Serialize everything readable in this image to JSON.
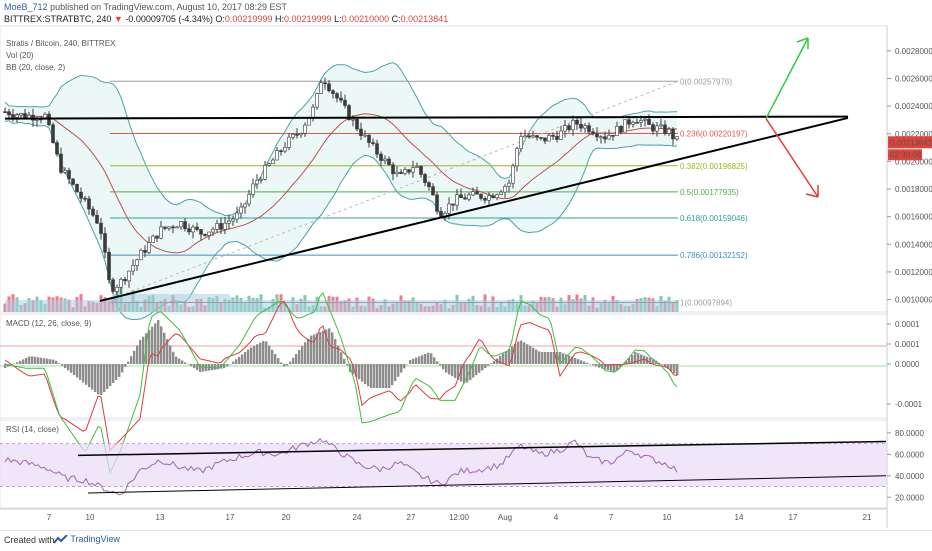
{
  "header": {
    "author": "MoeB_712",
    "published": "published on TradingView.com, August 10, 2017 08:29 EST",
    "symbol_line": "BITTREX:STRATBTC, 240",
    "change": "-0.00009705 (-4.34%)",
    "o_label": "O:",
    "o_value": "0.00219999",
    "h_label": "H:",
    "h_value": "0.00219999",
    "l_label": "L:",
    "l_value": "0.00210000",
    "c_label": "C:",
    "c_value": "0.00213841"
  },
  "chart_data": [
    {
      "type": "candlestick",
      "title": "Stratis / Bitcoin, 240, BITTREX",
      "indicators": [
        "Vol (20)",
        "BB (20, close, 2)"
      ],
      "x_ticks": [
        "7",
        "10",
        "13",
        "17",
        "20",
        "24",
        "27",
        "12:00",
        "Aug",
        "4",
        "7",
        "10",
        "14",
        "17",
        "21"
      ],
      "y_ticks": [
        "0.00280000",
        "0.00260000",
        "0.00240000",
        "0.00220000",
        "0.00200000",
        "0.00180000",
        "0.00160000",
        "0.00140000",
        "0.00120000",
        "0.00100000"
      ],
      "ylim": [
        0.00091,
        0.00298
      ],
      "last_price": "0.00213841",
      "countdown": "02:30:08",
      "fib_levels": [
        {
          "ratio": "0",
          "value": "0.00257976",
          "color": "#9e9e9e"
        },
        {
          "ratio": "0.236",
          "value": "0.00220197",
          "color": "#e05a4b"
        },
        {
          "ratio": "0.382",
          "value": "0.00196825",
          "color": "#9ab81f"
        },
        {
          "ratio": "0.5",
          "value": "0.00177935",
          "color": "#4caf50"
        },
        {
          "ratio": "0.618",
          "value": "0.00159046",
          "color": "#26a69a"
        },
        {
          "ratio": "0.786",
          "value": "0.00132152",
          "color": "#3f8fbf"
        },
        {
          "ratio": "1",
          "value": "0.00097894",
          "color": "#9e9e9e"
        }
      ],
      "resistance": 0.00231,
      "support_start": 0.00099,
      "support_end": 0.0023
    },
    {
      "type": "macd",
      "title": "MACD (12, 26, close, 9)",
      "y_ticks": [
        "0.0001",
        "0.0001",
        "0.0000",
        "-0.0001"
      ],
      "ylim": [
        -0.000135,
        0.000125
      ]
    },
    {
      "type": "line",
      "title": "RSI (14, close)",
      "y_ticks": [
        "80.0000",
        "60.0000",
        "40.0000",
        "20.0000"
      ],
      "ylim": [
        10,
        92
      ],
      "band": [
        30,
        70
      ]
    }
  ],
  "colors": {
    "up": "#53b987",
    "down": "#eb4d5c",
    "bb": "#4aa3a8",
    "basis": "#c0504d",
    "macd": "#3fbf3f",
    "signal": "#e03c3c",
    "rsi": "#9c66b4",
    "rsi_band": "#e9dbf6"
  },
  "footer": {
    "created": "Created with",
    "brand": "TradingView"
  }
}
